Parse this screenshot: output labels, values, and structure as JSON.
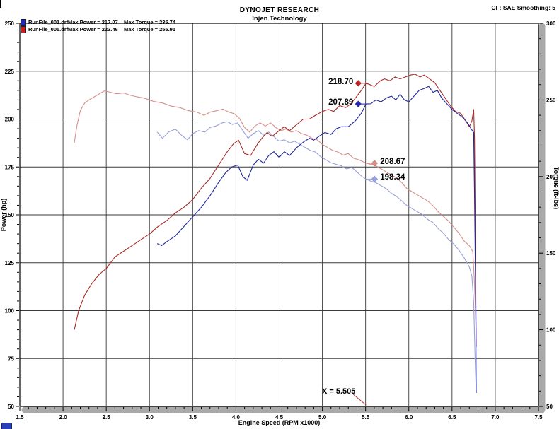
{
  "header": {
    "title": "DYNOJET RESEARCH",
    "subtitle": "Injen Technology",
    "correction": "CF: SAE  Smoothing: 5"
  },
  "legend": {
    "rows": [
      {
        "file": "RunFile_001.drf",
        "power": "Max Power = 217.07",
        "torque": "Max Torque = 235.74",
        "color": "#2228b4"
      },
      {
        "file": "RunFile_005.drf",
        "power": "Max Power = 223.46",
        "torque": "Max Torque = 255.91",
        "color": "#c42222"
      }
    ]
  },
  "chart_data": {
    "type": "line",
    "title": "DYNOJET RESEARCH",
    "subtitle": "Injen Technology",
    "xlabel": "Engine Speed (RPM x1000)",
    "ylabel_left": "Power (hp)",
    "ylabel_right": "Torque (ft-lbs)",
    "xlim": [
      1.5,
      7.5
    ],
    "ylim_left": [
      50,
      250
    ],
    "ylim_right": [
      50,
      300
    ],
    "x_ticks": [
      1.5,
      2.0,
      2.5,
      3.0,
      3.5,
      4.0,
      4.5,
      5.0,
      5.5,
      6.0,
      6.5,
      7.0,
      7.5
    ],
    "y_left_ticks": [
      50,
      75,
      100,
      125,
      150,
      175,
      200,
      225,
      250
    ],
    "y_right_ticks": [
      50,
      100,
      150,
      200,
      250,
      300
    ],
    "grid": true,
    "legend_position": "top-left",
    "colors": {
      "grid": "#3a3a3a",
      "frame": "#000000",
      "axis_bar": "#a9a9a9",
      "cursor_line": "#c03030"
    },
    "series": [
      {
        "name": "RunFile_005.drf Torque",
        "axis": "torque",
        "color": "#d4908c",
        "max": 255.91,
        "points": [
          [
            2.13,
            222
          ],
          [
            2.16,
            233
          ],
          [
            2.2,
            243
          ],
          [
            2.25,
            248
          ],
          [
            2.3,
            250
          ],
          [
            2.36,
            252
          ],
          [
            2.42,
            254
          ],
          [
            2.48,
            255.91
          ],
          [
            2.55,
            255
          ],
          [
            2.62,
            254
          ],
          [
            2.7,
            254.5
          ],
          [
            2.78,
            253
          ],
          [
            2.86,
            252
          ],
          [
            2.95,
            251
          ],
          [
            3.05,
            249
          ],
          [
            3.15,
            248
          ],
          [
            3.25,
            246
          ],
          [
            3.35,
            245
          ],
          [
            3.45,
            243
          ],
          [
            3.55,
            242
          ],
          [
            3.63,
            240
          ],
          [
            3.7,
            242
          ],
          [
            3.78,
            243
          ],
          [
            3.85,
            244
          ],
          [
            3.92,
            242
          ],
          [
            3.98,
            241
          ],
          [
            4.04,
            238
          ],
          [
            4.1,
            232
          ],
          [
            4.16,
            229
          ],
          [
            4.22,
            233
          ],
          [
            4.28,
            235
          ],
          [
            4.34,
            233
          ],
          [
            4.4,
            235
          ],
          [
            4.46,
            232
          ],
          [
            4.52,
            230
          ],
          [
            4.58,
            231
          ],
          [
            4.64,
            229
          ],
          [
            4.7,
            230
          ],
          [
            4.76,
            228
          ],
          [
            4.82,
            227
          ],
          [
            4.88,
            225
          ],
          [
            4.94,
            224
          ],
          [
            5.0,
            221
          ],
          [
            5.06,
            219
          ],
          [
            5.12,
            217
          ],
          [
            5.18,
            216
          ],
          [
            5.24,
            214
          ],
          [
            5.3,
            215
          ],
          [
            5.36,
            212
          ],
          [
            5.42,
            211
          ],
          [
            5.46,
            210
          ],
          [
            5.505,
            208.67
          ],
          [
            5.56,
            208
          ],
          [
            5.62,
            207
          ],
          [
            5.68,
            205
          ],
          [
            5.74,
            203
          ],
          [
            5.8,
            201
          ],
          [
            5.86,
            199
          ],
          [
            5.92,
            196
          ],
          [
            5.98,
            192
          ],
          [
            6.04,
            190
          ],
          [
            6.1,
            188
          ],
          [
            6.16,
            186
          ],
          [
            6.22,
            184
          ],
          [
            6.28,
            181
          ],
          [
            6.34,
            177
          ],
          [
            6.4,
            174
          ],
          [
            6.46,
            171
          ],
          [
            6.52,
            167
          ],
          [
            6.58,
            163
          ],
          [
            6.64,
            158
          ],
          [
            6.7,
            155
          ],
          [
            6.74,
            151
          ],
          [
            6.76,
            130
          ],
          [
            6.78,
            97
          ]
        ]
      },
      {
        "name": "RunFile_001.drf Torque",
        "axis": "torque",
        "color": "#97a0d8",
        "max": 235.74,
        "points": [
          [
            3.09,
            229
          ],
          [
            3.15,
            225
          ],
          [
            3.22,
            229
          ],
          [
            3.3,
            231
          ],
          [
            3.37,
            227
          ],
          [
            3.44,
            224
          ],
          [
            3.5,
            228
          ],
          [
            3.57,
            230
          ],
          [
            3.64,
            229
          ],
          [
            3.7,
            232
          ],
          [
            3.77,
            233
          ],
          [
            3.84,
            235
          ],
          [
            3.9,
            235.74
          ],
          [
            3.96,
            234
          ],
          [
            4.02,
            235
          ],
          [
            4.08,
            230
          ],
          [
            4.14,
            225
          ],
          [
            4.2,
            228
          ],
          [
            4.26,
            230
          ],
          [
            4.32,
            227
          ],
          [
            4.38,
            229
          ],
          [
            4.44,
            226
          ],
          [
            4.5,
            223
          ],
          [
            4.56,
            224
          ],
          [
            4.62,
            222
          ],
          [
            4.68,
            223
          ],
          [
            4.74,
            221
          ],
          [
            4.8,
            219
          ],
          [
            4.86,
            217
          ],
          [
            4.92,
            216
          ],
          [
            4.98,
            213
          ],
          [
            5.04,
            211
          ],
          [
            5.1,
            209
          ],
          [
            5.16,
            208
          ],
          [
            5.22,
            207
          ],
          [
            5.28,
            205
          ],
          [
            5.34,
            206
          ],
          [
            5.4,
            203
          ],
          [
            5.46,
            200
          ],
          [
            5.505,
            198.34
          ],
          [
            5.56,
            197
          ],
          [
            5.62,
            196
          ],
          [
            5.68,
            194
          ],
          [
            5.74,
            192
          ],
          [
            5.8,
            189
          ],
          [
            5.86,
            187
          ],
          [
            5.92,
            184
          ],
          [
            5.98,
            181
          ],
          [
            6.04,
            179
          ],
          [
            6.1,
            177
          ],
          [
            6.16,
            175
          ],
          [
            6.22,
            172
          ],
          [
            6.28,
            170
          ],
          [
            6.34,
            166
          ],
          [
            6.4,
            163
          ],
          [
            6.46,
            159
          ],
          [
            6.52,
            156
          ],
          [
            6.58,
            152
          ],
          [
            6.64,
            147
          ],
          [
            6.7,
            141
          ],
          [
            6.73,
            135
          ],
          [
            6.75,
            118
          ],
          [
            6.77,
            75
          ],
          [
            6.78,
            60
          ]
        ]
      },
      {
        "name": "RunFile_005.drf Power",
        "axis": "power",
        "color": "#a62b28",
        "max": 223.46,
        "points": [
          [
            2.13,
            90
          ],
          [
            2.18,
            100
          ],
          [
            2.25,
            108
          ],
          [
            2.33,
            114
          ],
          [
            2.42,
            119
          ],
          [
            2.5,
            122
          ],
          [
            2.6,
            128
          ],
          [
            2.7,
            131
          ],
          [
            2.8,
            134
          ],
          [
            2.9,
            137
          ],
          [
            3.0,
            140
          ],
          [
            3.1,
            144
          ],
          [
            3.2,
            147
          ],
          [
            3.3,
            151
          ],
          [
            3.4,
            154
          ],
          [
            3.5,
            158
          ],
          [
            3.6,
            164
          ],
          [
            3.7,
            169
          ],
          [
            3.8,
            176
          ],
          [
            3.9,
            183
          ],
          [
            3.97,
            187
          ],
          [
            4.03,
            189
          ],
          [
            4.1,
            182
          ],
          [
            4.17,
            181
          ],
          [
            4.25,
            187
          ],
          [
            4.3,
            190
          ],
          [
            4.36,
            193
          ],
          [
            4.42,
            191
          ],
          [
            4.5,
            194
          ],
          [
            4.56,
            196
          ],
          [
            4.62,
            194
          ],
          [
            4.7,
            197
          ],
          [
            4.78,
            200
          ],
          [
            4.85,
            200
          ],
          [
            4.92,
            202
          ],
          [
            5.0,
            204
          ],
          [
            5.07,
            205
          ],
          [
            5.13,
            204
          ],
          [
            5.2,
            207
          ],
          [
            5.27,
            206
          ],
          [
            5.33,
            208
          ],
          [
            5.4,
            212
          ],
          [
            5.45,
            215
          ],
          [
            5.505,
            218.7
          ],
          [
            5.55,
            218
          ],
          [
            5.6,
            217
          ],
          [
            5.67,
            220
          ],
          [
            5.72,
            221
          ],
          [
            5.78,
            220
          ],
          [
            5.84,
            222
          ],
          [
            5.9,
            221
          ],
          [
            5.96,
            222
          ],
          [
            6.02,
            223
          ],
          [
            6.07,
            223.46
          ],
          [
            6.13,
            222
          ],
          [
            6.18,
            223
          ],
          [
            6.24,
            221
          ],
          [
            6.3,
            219
          ],
          [
            6.36,
            215
          ],
          [
            6.42,
            211
          ],
          [
            6.48,
            207
          ],
          [
            6.54,
            204
          ],
          [
            6.6,
            203
          ],
          [
            6.66,
            199
          ],
          [
            6.7,
            196
          ],
          [
            6.73,
            199
          ],
          [
            6.75,
            205
          ],
          [
            6.76,
            190
          ],
          [
            6.77,
            140
          ],
          [
            6.78,
            81
          ]
        ]
      },
      {
        "name": "RunFile_001.drf Power",
        "axis": "power",
        "color": "#20289a",
        "max": 217.07,
        "points": [
          [
            3.09,
            135
          ],
          [
            3.14,
            134
          ],
          [
            3.2,
            136
          ],
          [
            3.3,
            139
          ],
          [
            3.4,
            144
          ],
          [
            3.5,
            149
          ],
          [
            3.6,
            154
          ],
          [
            3.7,
            160
          ],
          [
            3.8,
            167
          ],
          [
            3.88,
            172
          ],
          [
            3.95,
            175
          ],
          [
            4.02,
            176
          ],
          [
            4.08,
            170
          ],
          [
            4.13,
            168
          ],
          [
            4.2,
            176
          ],
          [
            4.26,
            179
          ],
          [
            4.32,
            177
          ],
          [
            4.38,
            181
          ],
          [
            4.44,
            183
          ],
          [
            4.5,
            180
          ],
          [
            4.56,
            183
          ],
          [
            4.62,
            181
          ],
          [
            4.7,
            185
          ],
          [
            4.78,
            188
          ],
          [
            4.85,
            190
          ],
          [
            4.9,
            189
          ],
          [
            4.96,
            191
          ],
          [
            5.03,
            193
          ],
          [
            5.1,
            192
          ],
          [
            5.16,
            195
          ],
          [
            5.22,
            196
          ],
          [
            5.3,
            196
          ],
          [
            5.38,
            199
          ],
          [
            5.45,
            203
          ],
          [
            5.505,
            207.89
          ],
          [
            5.56,
            208
          ],
          [
            5.62,
            210
          ],
          [
            5.68,
            209
          ],
          [
            5.74,
            211
          ],
          [
            5.8,
            212
          ],
          [
            5.85,
            210
          ],
          [
            5.9,
            213
          ],
          [
            5.95,
            210
          ],
          [
            6.0,
            209
          ],
          [
            6.06,
            212
          ],
          [
            6.12,
            215
          ],
          [
            6.18,
            216
          ],
          [
            6.23,
            217.07
          ],
          [
            6.28,
            214
          ],
          [
            6.33,
            215
          ],
          [
            6.38,
            211
          ],
          [
            6.44,
            208
          ],
          [
            6.5,
            205
          ],
          [
            6.56,
            203
          ],
          [
            6.62,
            201
          ],
          [
            6.68,
            198
          ],
          [
            6.72,
            195
          ],
          [
            6.75,
            193
          ],
          [
            6.76,
            160
          ],
          [
            6.775,
            100
          ],
          [
            6.78,
            57
          ]
        ]
      }
    ],
    "annotations": [
      {
        "text": "218.70",
        "rpm": 5.505,
        "value": 218.7,
        "axis": "power",
        "side": "left",
        "color": "#c42222"
      },
      {
        "text": "207.89",
        "rpm": 5.505,
        "value": 207.89,
        "axis": "power",
        "side": "left",
        "color": "#2228b4"
      },
      {
        "text": "208.67",
        "rpm": 5.505,
        "value": 208.67,
        "axis": "torque",
        "side": "right",
        "color": "#d98c88"
      },
      {
        "text": "198.34",
        "rpm": 5.505,
        "value": 198.34,
        "axis": "torque",
        "side": "right",
        "color": "#96a0e4"
      }
    ],
    "cursor": {
      "label": "X = 5.505",
      "x": 5.505
    }
  }
}
